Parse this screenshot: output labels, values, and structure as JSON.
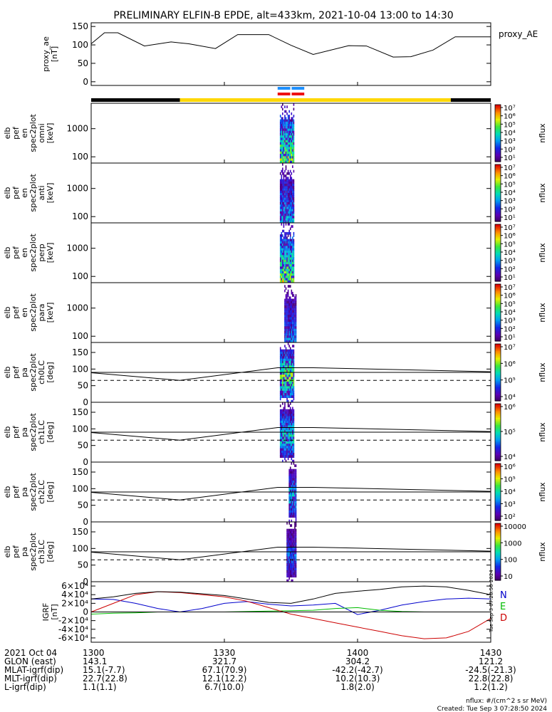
{
  "title": "PRELIMINARY ELFIN-B EPDE, alt=433km, 2021-10-04 13:00 to 14:30",
  "colors": {
    "sunlit_bar": "#ffd700",
    "eclipse_bar": "#000000",
    "north_marker": "#1e90ff",
    "south_marker": "#ee1111",
    "grf_n": "#0000cc",
    "grf_e": "#00bb00",
    "grf_d": "#cc0000",
    "grf_total": "#000000"
  },
  "chart_data": [
    {
      "type": "line",
      "id": "proxy_ae",
      "ylabel": "proxy_ae\n[nT]",
      "legend": "proxy_AE",
      "ylim": [
        -10,
        160
      ],
      "yticks": [
        "0",
        "50",
        "100",
        "150"
      ],
      "ytick_values": [
        0,
        50,
        100,
        150
      ],
      "x_minutes": [
        0,
        3,
        6,
        12,
        18,
        22,
        28,
        33,
        40,
        45,
        50,
        58,
        62,
        68,
        72,
        77,
        82,
        87,
        90
      ],
      "values": [
        103,
        133,
        133,
        97,
        108,
        103,
        90,
        128,
        128,
        99,
        74,
        98,
        97,
        67,
        68,
        86,
        122,
        122,
        122
      ]
    },
    {
      "type": "heatmap",
      "id": "omni",
      "ylabel": "elb\npef\nen\nspec2plot\nomni\n[keV]",
      "ylim": [
        60,
        8000
      ],
      "yscale": "log",
      "yticks": [
        "100",
        "1000"
      ],
      "ytick_values": [
        100,
        1000
      ],
      "colorbar": {
        "label": "nflux",
        "ticks": [
          "10¹",
          "10²",
          "10³",
          "10⁴",
          "10⁵",
          "10⁶",
          "10⁷"
        ],
        "log_min": 1,
        "log_max": 7
      },
      "activity_minutes": [
        42.5,
        45.5
      ],
      "intensity": 0.9
    },
    {
      "type": "heatmap",
      "id": "anti",
      "ylabel": "elb\npef\nen\nspec2plot\nanti\n[keV]",
      "ylim": [
        60,
        8000
      ],
      "yscale": "log",
      "yticks": [
        "100",
        "1000"
      ],
      "ytick_values": [
        100,
        1000
      ],
      "colorbar": {
        "label": "nflux",
        "ticks": [
          "10¹",
          "10²",
          "10³",
          "10⁴",
          "10⁵",
          "10⁶",
          "10⁷"
        ],
        "log_min": 1,
        "log_max": 7
      },
      "activity_minutes": [
        42.5,
        45.5
      ],
      "intensity": 0.55
    },
    {
      "type": "heatmap",
      "id": "perp",
      "ylabel": "elb\npef\nen\nspec2plot\nperp\n[keV]",
      "ylim": [
        60,
        8000
      ],
      "yscale": "log",
      "yticks": [
        "100",
        "1000"
      ],
      "ytick_values": [
        100,
        1000
      ],
      "colorbar": {
        "label": "nflux",
        "ticks": [
          "10¹",
          "10²",
          "10³",
          "10⁴",
          "10⁵",
          "10⁶",
          "10⁷"
        ],
        "log_min": 1,
        "log_max": 7
      },
      "activity_minutes": [
        42.5,
        45.5
      ],
      "intensity": 0.9
    },
    {
      "type": "heatmap",
      "id": "para",
      "ylabel": "elb\npef\nen\nspec2plot\npara\n[keV]",
      "ylim": [
        60,
        8000
      ],
      "yscale": "log",
      "yticks": [
        "100",
        "1000"
      ],
      "ytick_values": [
        100,
        1000
      ],
      "colorbar": {
        "label": "nflux",
        "ticks": [
          "10¹",
          "10²",
          "10³",
          "10⁴",
          "10⁵",
          "10⁶",
          "10⁷"
        ],
        "log_min": 1,
        "log_max": 7
      },
      "activity_minutes": [
        43.5,
        46.0
      ],
      "intensity": 0.45
    },
    {
      "type": "heatmap",
      "id": "ch0LC",
      "ylabel": "elb\npef\npa\nspec2plot\nch0LC\n[deg]",
      "ylim": [
        0,
        180
      ],
      "yticks": [
        "0",
        "50",
        "100",
        "150"
      ],
      "ytick_values": [
        0,
        50,
        100,
        150
      ],
      "colorbar": {
        "label": "nflux",
        "ticks": [
          "10⁴",
          "10⁵",
          "10⁶",
          "10⁷"
        ],
        "log_min": 3.5,
        "log_max": 7
      },
      "activity_minutes": [
        42.5,
        45.5
      ],
      "intensity": 0.85,
      "loss_cone_solid": [
        [
          0,
          89
        ],
        [
          20,
          66
        ],
        [
          42,
          104
        ],
        [
          50,
          104
        ],
        [
          90,
          92
        ]
      ],
      "loss_cone_dashed": [
        [
          0,
          66
        ],
        [
          90,
          66
        ]
      ],
      "ref_line": 90
    },
    {
      "type": "heatmap",
      "id": "ch1LC",
      "ylabel": "elb\npef\npa\nspec2plot\nch1LC\n[deg]",
      "ylim": [
        0,
        180
      ],
      "yticks": [
        "0",
        "50",
        "100",
        "150"
      ],
      "ytick_values": [
        0,
        50,
        100,
        150
      ],
      "colorbar": {
        "label": "nflux",
        "ticks": [
          "10⁴",
          "10⁵",
          "10⁶"
        ],
        "log_min": 3.5,
        "log_max": 6.5
      },
      "activity_minutes": [
        42.5,
        45.5
      ],
      "intensity": 0.65,
      "loss_cone_solid": [
        [
          0,
          89
        ],
        [
          20,
          66
        ],
        [
          42,
          104
        ],
        [
          50,
          104
        ],
        [
          90,
          92
        ]
      ],
      "loss_cone_dashed": [
        [
          0,
          66
        ],
        [
          90,
          66
        ]
      ],
      "ref_line": 90
    },
    {
      "type": "heatmap",
      "id": "ch2LC",
      "ylabel": "elb\npef\npa\nspec2plot\nch2LC\n[deg]",
      "ylim": [
        0,
        180
      ],
      "yticks": [
        "0",
        "50",
        "100",
        "150"
      ],
      "ytick_values": [
        0,
        50,
        100,
        150
      ],
      "colorbar": {
        "label": "nflux",
        "ticks": [
          "10²",
          "10³",
          "10⁴",
          "10⁵",
          "10⁶"
        ],
        "log_min": 2,
        "log_max": 6.3
      },
      "activity_minutes": [
        44.5,
        46.0
      ],
      "intensity": 0.55,
      "loss_cone_solid": [
        [
          0,
          89
        ],
        [
          20,
          66
        ],
        [
          42,
          104
        ],
        [
          50,
          104
        ],
        [
          90,
          92
        ]
      ],
      "loss_cone_dashed": [
        [
          0,
          66
        ],
        [
          90,
          66
        ]
      ],
      "ref_line": 90
    },
    {
      "type": "heatmap",
      "id": "ch3LC",
      "ylabel": "elb\npef\npa\nspec2plot\nch3LC\n[deg]",
      "ylim": [
        0,
        180
      ],
      "yticks": [
        "0",
        "50",
        "100",
        "150"
      ],
      "ytick_values": [
        0,
        50,
        100,
        150
      ],
      "colorbar": {
        "label": "nflux",
        "ticks": [
          "10",
          "100",
          "1000",
          "10000"
        ],
        "log_min": 1,
        "log_max": 4.3
      },
      "activity_minutes": [
        44.0,
        46.0
      ],
      "intensity": 0.4,
      "loss_cone_solid": [
        [
          0,
          89
        ],
        [
          20,
          66
        ],
        [
          42,
          104
        ],
        [
          50,
          104
        ],
        [
          90,
          92
        ]
      ],
      "loss_cone_dashed": [
        [
          0,
          66
        ],
        [
          90,
          66
        ]
      ],
      "ref_line": 90
    },
    {
      "type": "line",
      "id": "igrf",
      "ylabel": "IGRF\n[nT]",
      "ylim": [
        -70000,
        70000
      ],
      "yticks": [
        "-6×10⁴",
        "-4×10⁴",
        "-2×10⁴",
        "0",
        "2×10⁴",
        "4×10⁴",
        "6×10⁴"
      ],
      "ytick_values": [
        -60000,
        -40000,
        -20000,
        0,
        20000,
        40000,
        60000
      ],
      "legend": [
        "N",
        "E",
        "D"
      ],
      "x_minutes": [
        0,
        5,
        10,
        15,
        20,
        25,
        30,
        35,
        40,
        45,
        50,
        55,
        60,
        65,
        70,
        75,
        80,
        85,
        90
      ],
      "series": [
        {
          "name": "N",
          "values": [
            30000,
            29000,
            20000,
            8000,
            0,
            8000,
            20000,
            24000,
            18000,
            14000,
            16000,
            20000,
            -6000,
            4000,
            16000,
            24000,
            30000,
            32000,
            30000
          ]
        },
        {
          "name": "E",
          "values": [
            -5000,
            -3000,
            -2000,
            0,
            0,
            0,
            0,
            1000,
            2000,
            3000,
            4000,
            8000,
            10000,
            4000,
            1000,
            0,
            0,
            0,
            0
          ]
        },
        {
          "name": "D",
          "values": [
            0,
            20000,
            40000,
            47000,
            45000,
            40000,
            35000,
            25000,
            10000,
            -5000,
            -15000,
            -25000,
            -35000,
            -45000,
            -55000,
            -62000,
            -60000,
            -45000,
            -15000
          ]
        },
        {
          "name": "total",
          "values": [
            30000,
            35000,
            43000,
            47000,
            46000,
            42000,
            38000,
            30000,
            22000,
            20000,
            30000,
            43000,
            48000,
            52000,
            58000,
            60000,
            58000,
            50000,
            40000
          ]
        }
      ]
    }
  ],
  "x_axis": {
    "tick_labels": [
      "1300",
      "1330",
      "1400",
      "1430"
    ],
    "tick_minutes": [
      0,
      30,
      60,
      90
    ],
    "rows": [
      {
        "label": "2021 Oct 04",
        "values": [
          "1300",
          "1330",
          "1400",
          "1430"
        ]
      },
      {
        "label": "GLON (east)",
        "values": [
          "143.1",
          "321.7",
          "304.2",
          "121.2"
        ]
      },
      {
        "label": "MLAT-igrf(dip)",
        "values": [
          "15.1(-7.7)",
          "67.1(70.9)",
          "-42.2(-42.7)",
          "-24.5(-21.3)"
        ]
      },
      {
        "label": "MLT-igrf(dip)",
        "values": [
          "22.7(22.8)",
          "12.1(12.2)",
          "10.2(10.3)",
          "22.8(22.8)"
        ]
      },
      {
        "label": "L-igrf(dip)",
        "values": [
          "1.1(1.1)",
          "6.7(10.0)",
          "1.8(2.0)",
          "1.2(1.2)"
        ]
      }
    ]
  },
  "footer": {
    "units": "nflux: #/(cm^2 s sr MeV)",
    "created": "Created: Tue Sep  3 07:28:50 2024"
  },
  "side_stamp": "Tue Sep  3 07:28:50 2024",
  "sunlight": {
    "sunlit_start_min": 20,
    "sunlit_end_min": 81
  },
  "science_zones": [
    {
      "hemisphere": "north",
      "start_min": 42,
      "end_min": 48
    },
    {
      "hemisphere": "south",
      "start_min": 42,
      "end_min": 48
    }
  ]
}
